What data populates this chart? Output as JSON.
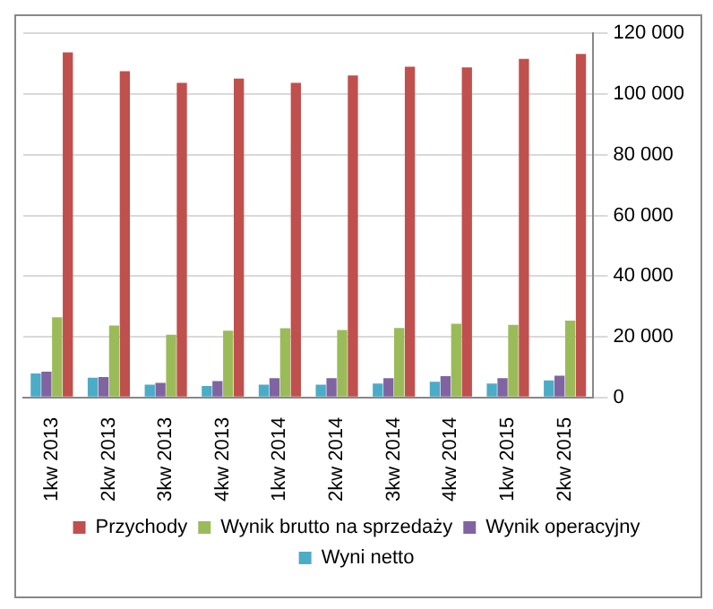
{
  "chart_data": {
    "type": "bar",
    "categories": [
      "1kw 2013",
      "2kw 2013",
      "3kw 2013",
      "4kw 2013",
      "1kw 2014",
      "2kw 2014",
      "3kw 2014",
      "4kw 2014",
      "1kw 2015",
      "2kw 2015"
    ],
    "series": [
      {
        "name": "Wyni netto",
        "color": "#4bacc6",
        "values": [
          7900,
          6500,
          4200,
          3800,
          4200,
          4200,
          4600,
          5200,
          4600,
          5600
        ]
      },
      {
        "name": "Wynik operacyjny",
        "color": "#8064a2",
        "values": [
          8500,
          6700,
          4800,
          5400,
          6400,
          6400,
          6400,
          7000,
          6400,
          7200
        ]
      },
      {
        "name": "Wynik brutto na sprzedaży",
        "color": "#9bbb59",
        "values": [
          26400,
          23700,
          20700,
          22000,
          22800,
          22200,
          22900,
          24300,
          23900,
          25300
        ]
      },
      {
        "name": "Przychody",
        "color": "#c0504d",
        "values": [
          113700,
          107500,
          103700,
          105100,
          103700,
          106100,
          109000,
          108800,
          111600,
          113200
        ]
      }
    ],
    "ylim": [
      0,
      120000
    ],
    "yticks": [
      {
        "value": 0,
        "label": "0"
      },
      {
        "value": 20000,
        "label": "20 000"
      },
      {
        "value": 40000,
        "label": "40 000"
      },
      {
        "value": 60000,
        "label": "60 000"
      },
      {
        "value": 80000,
        "label": "80 000"
      },
      {
        "value": 100000,
        "label": "100 000"
      },
      {
        "value": 120000,
        "label": "120 000"
      }
    ],
    "grid": "y",
    "legend": "bottom"
  }
}
